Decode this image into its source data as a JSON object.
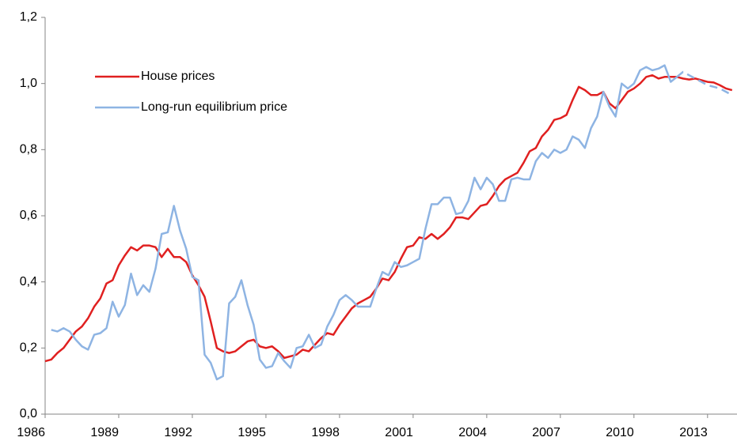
{
  "chart_data": {
    "type": "line",
    "x": [
      1986,
      1986.25,
      1986.5,
      1986.75,
      1987,
      1987.25,
      1987.5,
      1987.75,
      1988,
      1988.25,
      1988.5,
      1988.75,
      1989,
      1989.25,
      1989.5,
      1989.75,
      1990,
      1990.25,
      1990.5,
      1990.75,
      1991,
      1991.25,
      1991.5,
      1991.75,
      1992,
      1992.25,
      1992.5,
      1992.75,
      1993,
      1993.25,
      1993.5,
      1993.75,
      1994,
      1994.25,
      1994.5,
      1994.75,
      1995,
      1995.25,
      1995.5,
      1995.75,
      1996,
      1996.25,
      1996.5,
      1996.75,
      1997,
      1997.25,
      1997.5,
      1997.75,
      1998,
      1998.25,
      1998.5,
      1998.75,
      1999,
      1999.25,
      1999.5,
      1999.75,
      2000,
      2000.25,
      2000.5,
      2000.75,
      2001,
      2001.25,
      2001.5,
      2001.75,
      2002,
      2002.25,
      2002.5,
      2002.75,
      2003,
      2003.25,
      2003.5,
      2003.75,
      2004,
      2004.25,
      2004.5,
      2004.75,
      2005,
      2005.25,
      2005.5,
      2005.75,
      2006,
      2006.25,
      2006.5,
      2006.75,
      2007,
      2007.25,
      2007.5,
      2007.75,
      2008,
      2008.25,
      2008.5,
      2008.75,
      2009,
      2009.25,
      2009.5,
      2009.75,
      2010,
      2010.25,
      2010.5,
      2010.75,
      2011,
      2011.25,
      2011.5,
      2011.75,
      2012,
      2012.25,
      2012.5,
      2012.75,
      2013,
      2013.25,
      2013.5,
      2013.75,
      2014
    ],
    "series": [
      {
        "name": "House prices",
        "color": "#e02020",
        "values": [
          0.16,
          0.165,
          0.185,
          0.2,
          0.225,
          0.25,
          0.265,
          0.29,
          0.325,
          0.35,
          0.395,
          0.405,
          0.45,
          0.48,
          0.505,
          0.495,
          0.51,
          0.51,
          0.505,
          0.475,
          0.5,
          0.475,
          0.475,
          0.46,
          0.42,
          0.39,
          0.355,
          0.28,
          0.2,
          0.19,
          0.185,
          0.19,
          0.205,
          0.22,
          0.225,
          0.205,
          0.2,
          0.205,
          0.19,
          0.17,
          0.175,
          0.18,
          0.195,
          0.19,
          0.21,
          0.23,
          0.245,
          0.24,
          0.27,
          0.295,
          0.32,
          0.335,
          0.345,
          0.355,
          0.38,
          0.41,
          0.405,
          0.43,
          0.47,
          0.505,
          0.51,
          0.535,
          0.53,
          0.545,
          0.53,
          0.545,
          0.565,
          0.595,
          0.595,
          0.59,
          0.61,
          0.63,
          0.635,
          0.66,
          0.69,
          0.71,
          0.72,
          0.73,
          0.76,
          0.795,
          0.805,
          0.84,
          0.86,
          0.89,
          0.895,
          0.905,
          0.95,
          0.99,
          0.98,
          0.965,
          0.965,
          0.975,
          0.94,
          0.925,
          0.95,
          0.975,
          0.985,
          1.0,
          1.02,
          1.025,
          1.015,
          1.02,
          1.02,
          1.02,
          1.015,
          1.012,
          1.015,
          1.01,
          1.005,
          1.003,
          0.995,
          0.985,
          0.98
        ]
      },
      {
        "name": "Long-run equilibrium price",
        "color": "#8eb4e3",
        "dashed_from": 2011.75,
        "values": [
          null,
          0.255,
          0.25,
          0.26,
          0.25,
          0.225,
          0.205,
          0.195,
          0.24,
          0.245,
          0.26,
          0.34,
          0.295,
          0.33,
          0.425,
          0.36,
          0.39,
          0.37,
          0.44,
          0.545,
          0.55,
          0.63,
          0.555,
          0.5,
          0.415,
          0.405,
          0.18,
          0.155,
          0.105,
          0.115,
          0.335,
          0.355,
          0.405,
          0.33,
          0.27,
          0.165,
          0.14,
          0.145,
          0.185,
          0.16,
          0.14,
          0.2,
          0.205,
          0.24,
          0.2,
          0.21,
          0.265,
          0.3,
          0.345,
          0.36,
          0.345,
          0.325,
          0.325,
          0.325,
          0.38,
          0.43,
          0.42,
          0.46,
          0.445,
          0.45,
          0.46,
          0.47,
          0.56,
          0.635,
          0.635,
          0.655,
          0.655,
          0.605,
          0.61,
          0.645,
          0.715,
          0.68,
          0.715,
          0.695,
          0.645,
          0.645,
          0.71,
          0.715,
          0.71,
          0.71,
          0.765,
          0.79,
          0.775,
          0.8,
          0.79,
          0.8,
          0.84,
          0.83,
          0.805,
          0.865,
          0.9,
          0.975,
          0.93,
          0.9,
          1.0,
          0.985,
          1.0,
          1.04,
          1.05,
          1.04,
          1.045,
          1.055,
          1.005,
          1.02,
          1.035,
          1.025,
          1.015,
          1.005,
          0.995,
          0.99,
          0.985,
          0.975,
          0.965
        ]
      }
    ],
    "xlim": [
      1986,
      2014.2
    ],
    "xticks": [
      1986,
      1989,
      1992,
      1995,
      1998,
      2001,
      2004,
      2007,
      2010,
      2013
    ],
    "ylim": [
      0,
      1.2
    ],
    "yticks": [
      {
        "value": 0,
        "label": "0,0"
      },
      {
        "value": 0.2,
        "label": "0,2"
      },
      {
        "value": 0.4,
        "label": "0,4"
      },
      {
        "value": 0.6,
        "label": "0,6"
      },
      {
        "value": 0.8,
        "label": "0,8"
      },
      {
        "value": 1.0,
        "label": "1,0"
      },
      {
        "value": 1.2,
        "label": "1,2"
      }
    ],
    "legend": "upper left",
    "grid": false
  }
}
